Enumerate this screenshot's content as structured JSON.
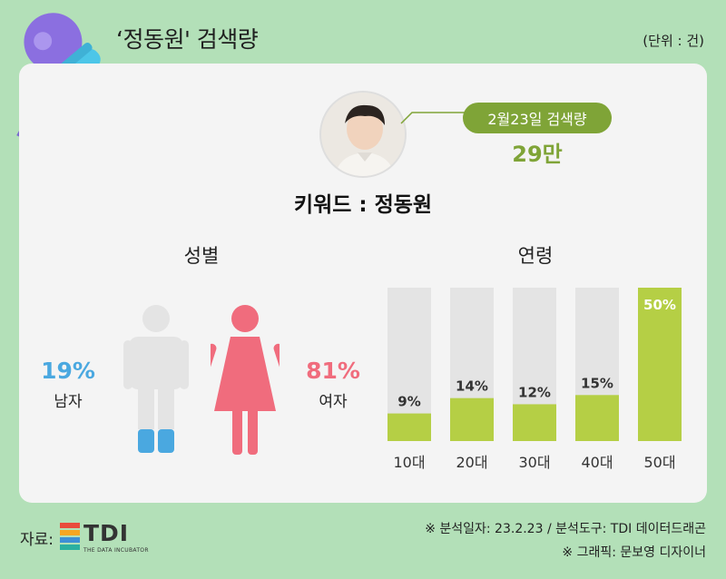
{
  "header": {
    "title": "‘정동원' 검색량",
    "unit": "(단위 : 건)"
  },
  "summary": {
    "date_label": "2월23일 검색량",
    "value": "29만",
    "keyword": "키워드 : 정동원"
  },
  "gender": {
    "title": "성별",
    "male": {
      "pct": "19%",
      "label": "남자",
      "color": "#4aa8e0"
    },
    "female": {
      "pct": "81%",
      "label": "여자",
      "color": "#f06c7d"
    }
  },
  "chart_data": {
    "type": "bar",
    "title": "연령",
    "categories": [
      "10대",
      "20대",
      "30대",
      "40대",
      "50대"
    ],
    "values": [
      9,
      14,
      12,
      15,
      50
    ],
    "value_labels": [
      "9%",
      "14%",
      "12%",
      "15%",
      "50%"
    ],
    "ylim": [
      0,
      50
    ],
    "colors": {
      "bar": "#b5cf45",
      "track": "#e4e4e4"
    }
  },
  "footer": {
    "source_label": "자료:",
    "logo_text": "TDI",
    "logo_sub": "THE DATA INCUBATOR",
    "note1": "※ 분석일자: 23.2.23  / 분석도구: TDI 데이터드래곤",
    "note2": "※ 그래픽: 문보영 디자이너"
  },
  "icons": {
    "decoration": "microphone-icon",
    "person": "person-photo"
  }
}
